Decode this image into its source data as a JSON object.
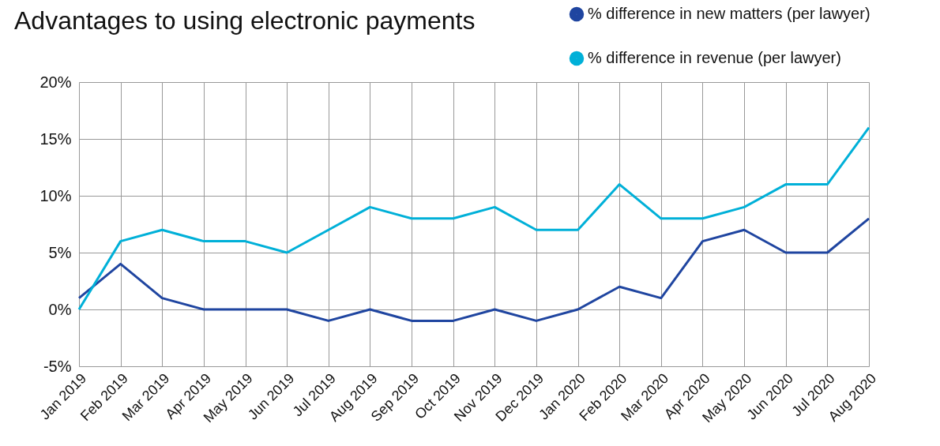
{
  "chart_data": {
    "type": "line",
    "title": "Advantages to using electronic payments",
    "categories": [
      "Jan 2019",
      "Feb 2019",
      "Mar 2019",
      "Apr 2019",
      "May 2019",
      "Jun 2019",
      "Jul 2019",
      "Aug 2019",
      "Sep 2019",
      "Oct 2019",
      "Nov 2019",
      "Dec 2019",
      "Jan 2020",
      "Feb 2020",
      "Mar 2020",
      "Apr 2020",
      "May 2020",
      "Jun 2020",
      "Jul 2020",
      "Aug 2020"
    ],
    "series": [
      {
        "name": "% difference in new matters (per lawyer)",
        "color": "#1f45a0",
        "values": [
          1,
          4,
          1,
          0,
          0,
          0,
          -1,
          0,
          -1,
          -1,
          0,
          -1,
          0,
          2,
          1,
          6,
          7,
          5,
          5,
          8
        ]
      },
      {
        "name": "% difference in revenue (per lawyer)",
        "color": "#00b0d8",
        "values": [
          0,
          6,
          7,
          6,
          6,
          5,
          7,
          9,
          8,
          8,
          9,
          7,
          7,
          11,
          8,
          8,
          9,
          11,
          11,
          16
        ]
      }
    ],
    "ylim": [
      -5,
      20
    ],
    "yticks": [
      {
        "value": -5,
        "label": "-5%"
      },
      {
        "value": 0,
        "label": "0%"
      },
      {
        "value": 5,
        "label": "5%"
      },
      {
        "value": 10,
        "label": "10%"
      },
      {
        "value": 15,
        "label": "15%"
      },
      {
        "value": 20,
        "label": "20%"
      }
    ],
    "grid": true,
    "legend": "top right",
    "line_style": "solid"
  }
}
